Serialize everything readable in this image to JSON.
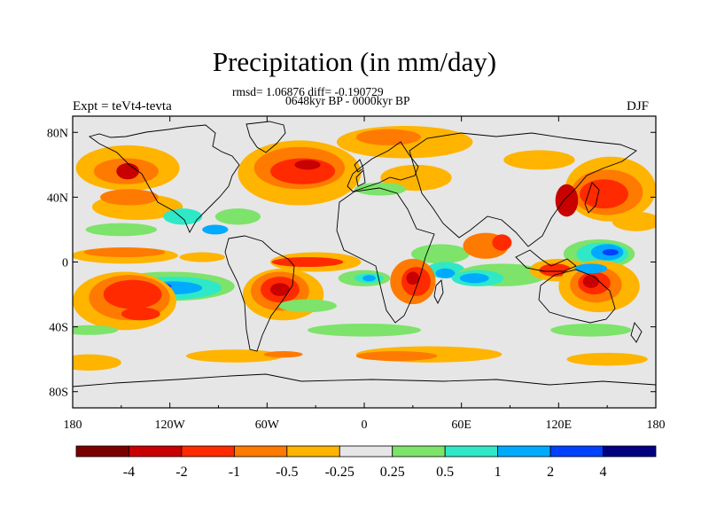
{
  "title": "Precipitation (in mm/day)",
  "stats_line": "rmsd= 1.06876 diff= -0.190729",
  "period_line": "0648kyr BP - 0000kyr BP",
  "experiment_label": "Expt = teVt4-tevta",
  "season_label": "DJF",
  "chart_data": {
    "type": "heatmap",
    "title": "Precipitation (in mm/day)",
    "subtitle": "0648kyr BP - 0000kyr BP",
    "xlabel": "",
    "ylabel": "",
    "xlim": [
      -180,
      180
    ],
    "ylim": [
      -90,
      90
    ],
    "x_ticks": [
      {
        "value": -180,
        "label": "180"
      },
      {
        "value": -120,
        "label": "120W"
      },
      {
        "value": -60,
        "label": "60W"
      },
      {
        "value": 0,
        "label": "0"
      },
      {
        "value": 60,
        "label": "60E"
      },
      {
        "value": 120,
        "label": "120E"
      },
      {
        "value": 180,
        "label": "180"
      }
    ],
    "y_ticks": [
      {
        "value": 80,
        "label": "80N"
      },
      {
        "value": 40,
        "label": "40N"
      },
      {
        "value": 0,
        "label": "0"
      },
      {
        "value": -40,
        "label": "40S"
      },
      {
        "value": -80,
        "label": "80S"
      }
    ],
    "colorbar": {
      "levels": [
        "-4",
        "-2",
        "-1",
        "-0.5",
        "-0.25",
        "0.25",
        "0.5",
        "1",
        "2",
        "4"
      ],
      "colors": [
        "#7a0000",
        "#c80000",
        "#ff2a00",
        "#ff7a00",
        "#ffb400",
        "#e6e6e6",
        "#7de36b",
        "#2ee8c8",
        "#00aaff",
        "#0040ff",
        "#000080"
      ]
    },
    "background_color": "#e6e6e6",
    "regions": [
      {
        "color": "#ffb400",
        "lon": -146,
        "lat": 58,
        "rx": 32,
        "ry": 14
      },
      {
        "color": "#ff7a00",
        "lon": -147,
        "lat": 56,
        "rx": 20,
        "ry": 8
      },
      {
        "color": "#c80000",
        "lon": -146,
        "lat": 56,
        "rx": 7,
        "ry": 5
      },
      {
        "color": "#ffb400",
        "lon": -140,
        "lat": 34,
        "rx": 28,
        "ry": 8
      },
      {
        "color": "#ff7a00",
        "lon": -145,
        "lat": 40,
        "rx": 18,
        "ry": 5
      },
      {
        "color": "#7de36b",
        "lon": -150,
        "lat": 20,
        "rx": 22,
        "ry": 4
      },
      {
        "color": "#2ee8c8",
        "lon": -112,
        "lat": 28,
        "rx": 12,
        "ry": 5
      },
      {
        "color": "#7de36b",
        "lon": -78,
        "lat": 28,
        "rx": 14,
        "ry": 5
      },
      {
        "color": "#00aaff",
        "lon": -92,
        "lat": 20,
        "rx": 8,
        "ry": 3
      },
      {
        "color": "#ffb400",
        "lon": -40,
        "lat": 55,
        "rx": 38,
        "ry": 20
      },
      {
        "color": "#ff7a00",
        "lon": -40,
        "lat": 58,
        "rx": 28,
        "ry": 13
      },
      {
        "color": "#ff2a00",
        "lon": -38,
        "lat": 56,
        "rx": 20,
        "ry": 8
      },
      {
        "color": "#c80000",
        "lon": -35,
        "lat": 60,
        "rx": 8,
        "ry": 3
      },
      {
        "color": "#ffb400",
        "lon": 25,
        "lat": 74,
        "rx": 42,
        "ry": 10
      },
      {
        "color": "#ff7a00",
        "lon": 15,
        "lat": 77,
        "rx": 20,
        "ry": 5
      },
      {
        "color": "#ffb400",
        "lon": 32,
        "lat": 52,
        "rx": 22,
        "ry": 8
      },
      {
        "color": "#7de36b",
        "lon": 10,
        "lat": 45,
        "rx": 16,
        "ry": 4
      },
      {
        "color": "#ffb400",
        "lon": 108,
        "lat": 63,
        "rx": 22,
        "ry": 6
      },
      {
        "color": "#ffb400",
        "lon": 152,
        "lat": 45,
        "rx": 28,
        "ry": 20
      },
      {
        "color": "#ff7a00",
        "lon": 150,
        "lat": 43,
        "rx": 22,
        "ry": 14
      },
      {
        "color": "#ff2a00",
        "lon": 148,
        "lat": 42,
        "rx": 15,
        "ry": 9
      },
      {
        "color": "#c80000",
        "lon": 125,
        "lat": 38,
        "rx": 7,
        "ry": 10
      },
      {
        "color": "#ffb400",
        "lon": 168,
        "lat": 25,
        "rx": 15,
        "ry": 6
      },
      {
        "color": "#ffb400",
        "lon": -148,
        "lat": 4,
        "rx": 33,
        "ry": 5
      },
      {
        "color": "#ff7a00",
        "lon": -148,
        "lat": 6,
        "rx": 25,
        "ry": 3
      },
      {
        "color": "#ffb400",
        "lon": -100,
        "lat": 3,
        "rx": 14,
        "ry": 3
      },
      {
        "color": "#ffb400",
        "lon": -30,
        "lat": 0,
        "rx": 28,
        "ry": 6
      },
      {
        "color": "#ff2a00",
        "lon": -35,
        "lat": 0,
        "rx": 22,
        "ry": 3
      },
      {
        "color": "#7de36b",
        "lon": 47,
        "lat": 5,
        "rx": 18,
        "ry": 6
      },
      {
        "color": "#2ee8c8",
        "lon": 50,
        "lat": -5,
        "rx": 12,
        "ry": 5
      },
      {
        "color": "#00aaff",
        "lon": 50,
        "lat": -7,
        "rx": 6,
        "ry": 3
      },
      {
        "color": "#ff7a00",
        "lon": 75,
        "lat": 10,
        "rx": 14,
        "ry": 8
      },
      {
        "color": "#ff2a00",
        "lon": 85,
        "lat": 12,
        "rx": 6,
        "ry": 5
      },
      {
        "color": "#7de36b",
        "lon": 145,
        "lat": 5,
        "rx": 22,
        "ry": 9
      },
      {
        "color": "#2ee8c8",
        "lon": 147,
        "lat": 5,
        "rx": 16,
        "ry": 7
      },
      {
        "color": "#00aaff",
        "lon": 150,
        "lat": 6,
        "rx": 10,
        "ry": 5
      },
      {
        "color": "#0040ff",
        "lon": 152,
        "lat": 6,
        "rx": 5,
        "ry": 2
      },
      {
        "color": "#7de36b",
        "lon": -120,
        "lat": -15,
        "rx": 40,
        "ry": 9
      },
      {
        "color": "#2ee8c8",
        "lon": -118,
        "lat": -16,
        "rx": 30,
        "ry": 7
      },
      {
        "color": "#00aaff",
        "lon": -118,
        "lat": -16,
        "rx": 18,
        "ry": 4
      },
      {
        "color": "#0040ff",
        "lon": -125,
        "lat": -15,
        "rx": 6,
        "ry": 2
      },
      {
        "color": "#ffb400",
        "lon": -148,
        "lat": -24,
        "rx": 32,
        "ry": 18
      },
      {
        "color": "#ff7a00",
        "lon": -145,
        "lat": -22,
        "rx": 25,
        "ry": 14
      },
      {
        "color": "#ff2a00",
        "lon": -143,
        "lat": -20,
        "rx": 18,
        "ry": 9
      },
      {
        "color": "#ff2a00",
        "lon": -138,
        "lat": -32,
        "rx": 12,
        "ry": 4
      },
      {
        "color": "#ffb400",
        "lon": -50,
        "lat": -20,
        "rx": 25,
        "ry": 16
      },
      {
        "color": "#ff7a00",
        "lon": -52,
        "lat": -18,
        "rx": 18,
        "ry": 12
      },
      {
        "color": "#ff2a00",
        "lon": -52,
        "lat": -17,
        "rx": 12,
        "ry": 8
      },
      {
        "color": "#c80000",
        "lon": -52,
        "lat": -17,
        "rx": 6,
        "ry": 4
      },
      {
        "color": "#7de36b",
        "lon": -35,
        "lat": -27,
        "rx": 18,
        "ry": 4
      },
      {
        "color": "#ff7a00",
        "lon": 30,
        "lat": -12,
        "rx": 14,
        "ry": 14
      },
      {
        "color": "#ff2a00",
        "lon": 32,
        "lat": -12,
        "rx": 9,
        "ry": 9
      },
      {
        "color": "#c80000",
        "lon": 30,
        "lat": -10,
        "rx": 4,
        "ry": 4
      },
      {
        "color": "#7de36b",
        "lon": 0,
        "lat": -10,
        "rx": 16,
        "ry": 5
      },
      {
        "color": "#2ee8c8",
        "lon": 3,
        "lat": -10,
        "rx": 9,
        "ry": 3
      },
      {
        "color": "#00aaff",
        "lon": 3,
        "lat": -10,
        "rx": 4,
        "ry": 2
      },
      {
        "color": "#7de36b",
        "lon": 85,
        "lat": -8,
        "rx": 28,
        "ry": 7
      },
      {
        "color": "#2ee8c8",
        "lon": 70,
        "lat": -10,
        "rx": 16,
        "ry": 5
      },
      {
        "color": "#00aaff",
        "lon": 68,
        "lat": -10,
        "rx": 9,
        "ry": 3
      },
      {
        "color": "#0040ff",
        "lon": 110,
        "lat": -6,
        "rx": 6,
        "ry": 2
      },
      {
        "color": "#ffb400",
        "lon": 120,
        "lat": -5,
        "rx": 18,
        "ry": 7
      },
      {
        "color": "#ff2a00",
        "lon": 118,
        "lat": -5,
        "rx": 10,
        "ry": 4
      },
      {
        "color": "#ffb400",
        "lon": 145,
        "lat": -15,
        "rx": 25,
        "ry": 16
      },
      {
        "color": "#ff7a00",
        "lon": 143,
        "lat": -14,
        "rx": 16,
        "ry": 11
      },
      {
        "color": "#ff2a00",
        "lon": 142,
        "lat": -13,
        "rx": 10,
        "ry": 7
      },
      {
        "color": "#c80000",
        "lon": 140,
        "lat": -12,
        "rx": 5,
        "ry": 4
      },
      {
        "color": "#00aaff",
        "lon": 140,
        "lat": -4,
        "rx": 10,
        "ry": 3
      },
      {
        "color": "#7de36b",
        "lon": 0,
        "lat": -42,
        "rx": 35,
        "ry": 4
      },
      {
        "color": "#7de36b",
        "lon": 140,
        "lat": -42,
        "rx": 25,
        "ry": 4
      },
      {
        "color": "#7de36b",
        "lon": -170,
        "lat": -42,
        "rx": 18,
        "ry": 3
      },
      {
        "color": "#ffb400",
        "lon": -170,
        "lat": -62,
        "rx": 20,
        "ry": 5
      },
      {
        "color": "#ffb400",
        "lon": -80,
        "lat": -58,
        "rx": 30,
        "ry": 4
      },
      {
        "color": "#ffb400",
        "lon": 40,
        "lat": -57,
        "rx": 45,
        "ry": 5
      },
      {
        "color": "#ff7a00",
        "lon": 20,
        "lat": -58,
        "rx": 25,
        "ry": 3
      },
      {
        "color": "#ffb400",
        "lon": 150,
        "lat": -60,
        "rx": 25,
        "ry": 4
      },
      {
        "color": "#ff7a00",
        "lon": -50,
        "lat": -57,
        "rx": 12,
        "ry": 2
      }
    ]
  }
}
